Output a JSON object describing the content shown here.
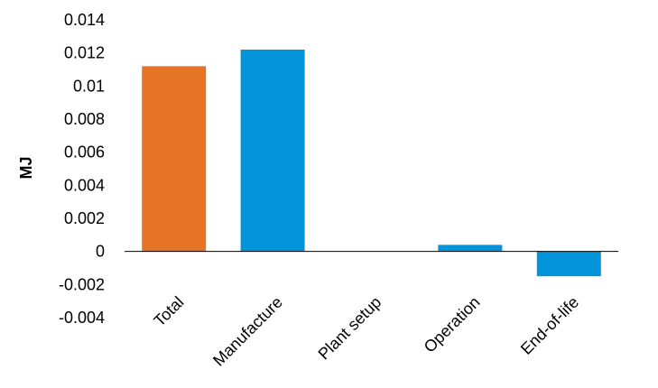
{
  "chart_data": {
    "type": "bar",
    "title": "",
    "xlabel": "",
    "ylabel": "MJ",
    "categories": [
      "Total",
      "Manufacture",
      "Plant setup",
      "Operation",
      "End-of-life"
    ],
    "values": [
      0.0112,
      0.0122,
      0.0,
      0.0004,
      -0.0015
    ],
    "colors": [
      "#e57426",
      "#0494da",
      "#0494da",
      "#0494da",
      "#0494da"
    ],
    "ylim": [
      -0.004,
      0.014
    ],
    "yticks": [
      0.014,
      0.012,
      0.01,
      0.008,
      0.006,
      0.004,
      0.002,
      0,
      -0.002,
      -0.004
    ],
    "ytick_labels": [
      "0.014",
      "0.012",
      "0.01",
      "0.008",
      "0.006",
      "0.004",
      "0.002",
      "0",
      "-0.002",
      "-0.004"
    ],
    "grid": false,
    "legend": "none"
  }
}
